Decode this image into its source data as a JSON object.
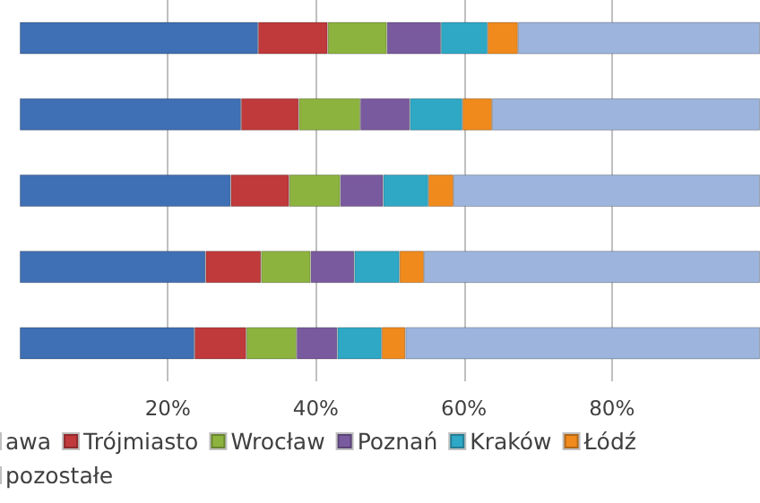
{
  "chart_data": {
    "type": "bar",
    "orientation": "horizontal",
    "stacked": true,
    "categories": [
      null,
      null,
      null,
      null,
      null
    ],
    "series": [
      {
        "name": "awa",
        "color": "#3f6fb5",
        "values": [
          32.2,
          29.9,
          28.5,
          25.1,
          23.6
        ]
      },
      {
        "name": "Trójmiasto",
        "color": "#c0393b",
        "values": [
          9.4,
          7.8,
          7.9,
          7.5,
          7.0
        ]
      },
      {
        "name": "Wrocław",
        "color": "#8db33f",
        "values": [
          8.0,
          8.3,
          6.9,
          6.7,
          6.8
        ]
      },
      {
        "name": "Poznań",
        "color": "#7a5a9f",
        "values": [
          7.3,
          6.7,
          5.8,
          5.9,
          5.5
        ]
      },
      {
        "name": "Kraków",
        "color": "#2fa8c6",
        "values": [
          6.3,
          7.1,
          6.1,
          6.1,
          6.0
        ]
      },
      {
        "name": "Łódź",
        "color": "#f08a1d",
        "values": [
          4.1,
          4.0,
          3.4,
          3.3,
          3.2
        ]
      },
      {
        "name": "pozostałe",
        "color": "#9db5dd",
        "values": [
          32.7,
          36.2,
          41.4,
          45.4,
          47.9
        ]
      }
    ],
    "xlim": [
      0,
      100
    ],
    "xticks": [
      {
        "value": 20,
        "label": "20%"
      },
      {
        "value": 40,
        "label": "40%"
      },
      {
        "value": 60,
        "label": "60%"
      },
      {
        "value": 80,
        "label": "80%"
      }
    ],
    "grid": "x",
    "legend": "bottom"
  }
}
